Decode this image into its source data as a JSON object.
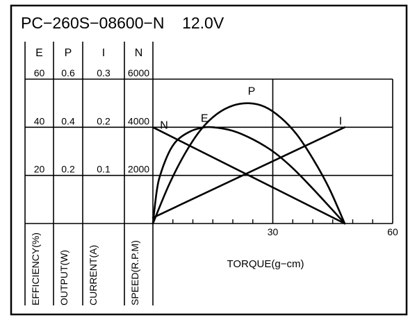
{
  "chart_data": {
    "type": "line",
    "title": "PC−260S−08600−N    12.0V",
    "xlabel": "TORQUE(g−cm)",
    "x_ticks": [
      "30",
      "60"
    ],
    "xlim": [
      0,
      60
    ],
    "grid": true,
    "axes": [
      {
        "symbol": "E",
        "label": "EFFICIENCY(%)",
        "ticks": [
          "20",
          "40",
          "60"
        ],
        "max": 60
      },
      {
        "symbol": "P",
        "label": "OUTPUT(W)",
        "ticks": [
          "0.2",
          "0.4",
          "0.6"
        ],
        "max": 0.6
      },
      {
        "symbol": "I",
        "label": "CURRENT(A)",
        "ticks": [
          "0.1",
          "0.2",
          "0.3"
        ],
        "max": 0.3
      },
      {
        "symbol": "N",
        "label": "SPEED(R.P.M)",
        "ticks": [
          "2000",
          "4000",
          "6000"
        ],
        "max": 6000
      }
    ],
    "series": [
      {
        "name": "N",
        "axis": 3,
        "x": [
          0,
          48
        ],
        "y": [
          4000,
          0
        ]
      },
      {
        "name": "I",
        "axis": 2,
        "x": [
          0,
          48
        ],
        "y": [
          0.012,
          0.2
        ]
      },
      {
        "name": "P",
        "axis": 1,
        "x": [
          0,
          4,
          8,
          12,
          16,
          20,
          24,
          28,
          32,
          36,
          40,
          44,
          48
        ],
        "y": [
          0,
          0.16,
          0.29,
          0.39,
          0.455,
          0.49,
          0.5,
          0.485,
          0.44,
          0.37,
          0.27,
          0.15,
          0
        ]
      },
      {
        "name": "E",
        "axis": 0,
        "x": [
          0,
          1,
          2,
          4,
          6,
          9,
          12,
          15,
          20,
          25,
          30,
          35,
          40,
          45,
          48
        ],
        "y": [
          0,
          14,
          21,
          29.5,
          34.5,
          38,
          39.7,
          40,
          38.5,
          35,
          30,
          23,
          14.5,
          5.5,
          0
        ]
      }
    ]
  }
}
